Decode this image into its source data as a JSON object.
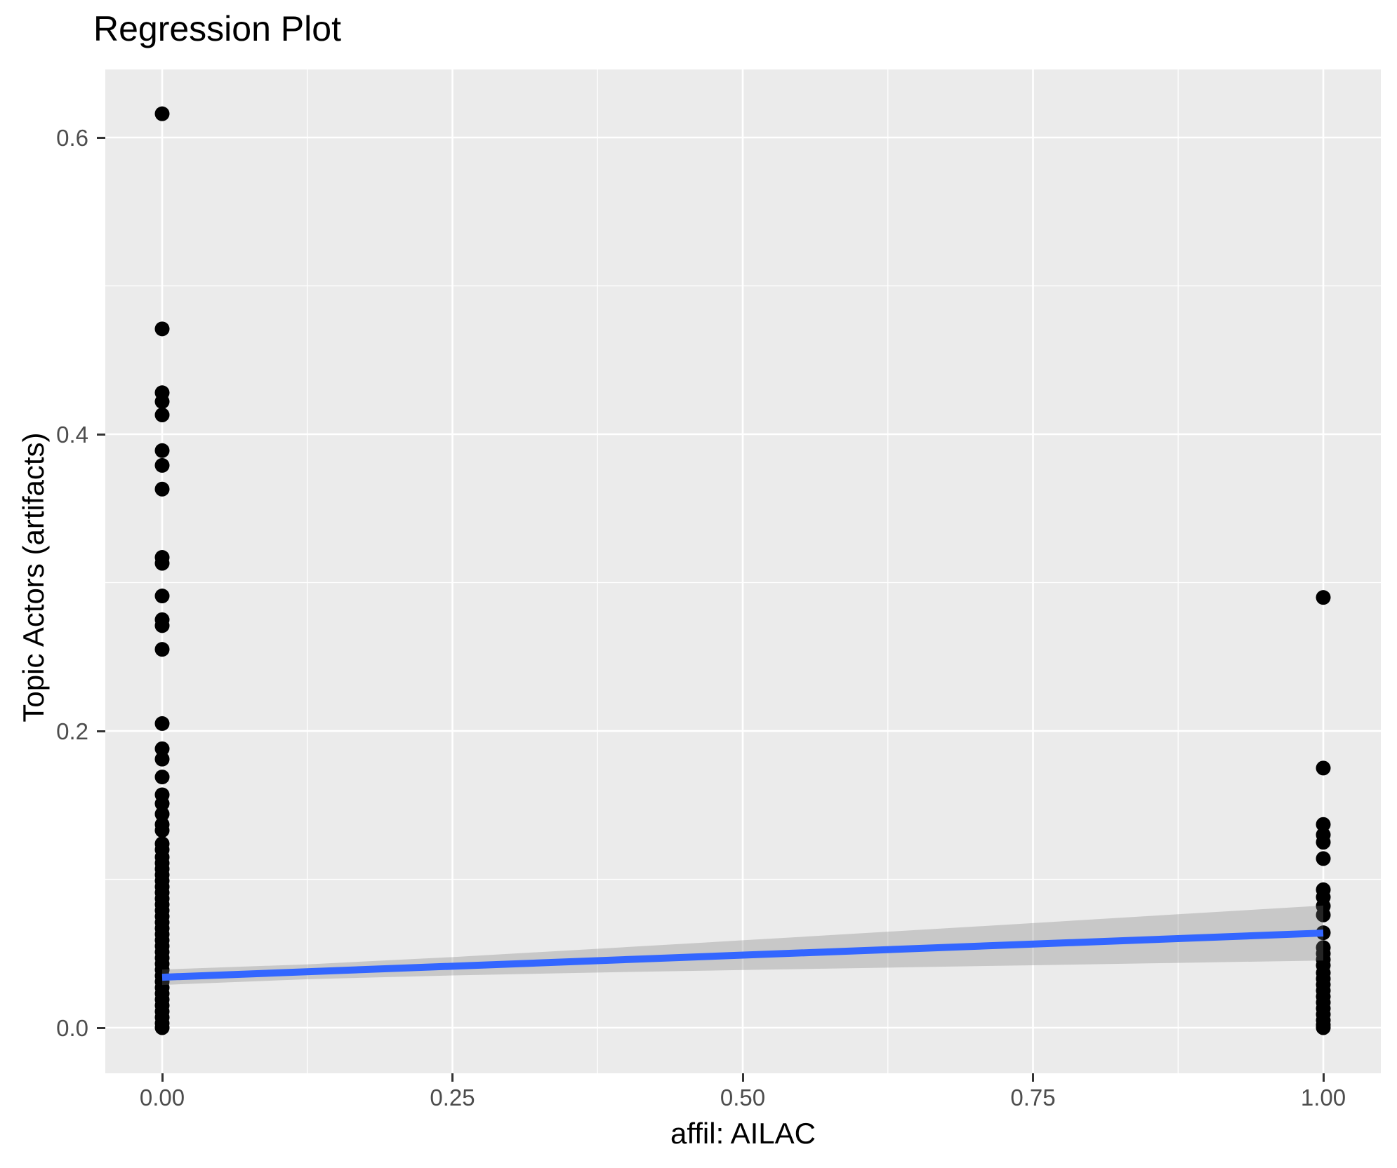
{
  "title": "Regression Plot",
  "colors": {
    "panel_background": "#EBEBEB",
    "gridline": "#FFFFFF",
    "tick_label": "#4D4D4D",
    "tick_mark": "#333333",
    "point": "#000000",
    "regression_line": "#3366FF",
    "confidence_band_fill": "#787878",
    "confidence_band_opacity": 0.3
  },
  "x_axis": {
    "title": "affil: AILAC",
    "tick_labels": [
      "0.00",
      "0.25",
      "0.50",
      "0.75",
      "1.00"
    ],
    "tick_values": [
      0,
      0.25,
      0.5,
      0.75,
      1.0
    ]
  },
  "y_axis": {
    "title": "Topic Actors (artifacts)",
    "tick_labels": [
      "0.0",
      "0.2",
      "0.4",
      "0.6"
    ],
    "tick_values": [
      0,
      0.2,
      0.4,
      0.6
    ]
  },
  "chart_data": {
    "type": "scatter",
    "title": "Regression Plot",
    "xlabel": "affil: AILAC",
    "ylabel": "Topic Actors (artifacts)",
    "xlim": [
      -0.049,
      1.049
    ],
    "ylim": [
      -0.0307,
      0.646
    ],
    "grid": "on",
    "x_major_gridlines": [
      0,
      0.25,
      0.5,
      0.75,
      1.0
    ],
    "x_minor_gridlines": [
      0.125,
      0.375,
      0.625,
      0.875
    ],
    "y_major_gridlines": [
      0,
      0.2,
      0.4,
      0.6
    ],
    "y_minor_gridlines": [
      0.1,
      0.3,
      0.5
    ],
    "point_radius_px": 10.5,
    "series": [
      {
        "name": "observations at affil = 0",
        "x": 0,
        "y_values": [
          0.616,
          0.471,
          0.428,
          0.422,
          0.413,
          0.389,
          0.379,
          0.363,
          0.317,
          0.313,
          0.291,
          0.275,
          0.271,
          0.255,
          0.205,
          0.188,
          0.181,
          0.169,
          0.157,
          0.151,
          0.144,
          0.137,
          0.133,
          0.124,
          0.12,
          0.115,
          0.111,
          0.107,
          0.103,
          0.099,
          0.095,
          0.091,
          0.087,
          0.083,
          0.079,
          0.075,
          0.071,
          0.067,
          0.063,
          0.059,
          0.055,
          0.051,
          0.047,
          0.043,
          0.039,
          0.035,
          0.031,
          0.027,
          0.023,
          0.019,
          0.015,
          0.011,
          0.007,
          0.003,
          0.0
        ]
      },
      {
        "name": "observations at affil = 1",
        "x": 1,
        "y_values": [
          0.29,
          0.175,
          0.137,
          0.13,
          0.125,
          0.114,
          0.093,
          0.088,
          0.082,
          0.076,
          0.064,
          0.054,
          0.05,
          0.046,
          0.042,
          0.037,
          0.033,
          0.029,
          0.025,
          0.021,
          0.017,
          0.013,
          0.009,
          0.005,
          0.002,
          0.0
        ]
      }
    ],
    "regression_line": {
      "x": [
        0,
        1
      ],
      "y": [
        0.034,
        0.0638
      ]
    },
    "confidence_band": {
      "x": [
        0,
        0.125,
        0.25,
        0.375,
        0.5,
        0.625,
        0.75,
        0.875,
        1
      ],
      "upper": [
        0.0392,
        0.0427,
        0.0476,
        0.0532,
        0.0589,
        0.0647,
        0.0705,
        0.0765,
        0.0823
      ],
      "lower": [
        0.0288,
        0.0327,
        0.0352,
        0.0372,
        0.0389,
        0.0405,
        0.0421,
        0.0437,
        0.0453
      ]
    }
  }
}
